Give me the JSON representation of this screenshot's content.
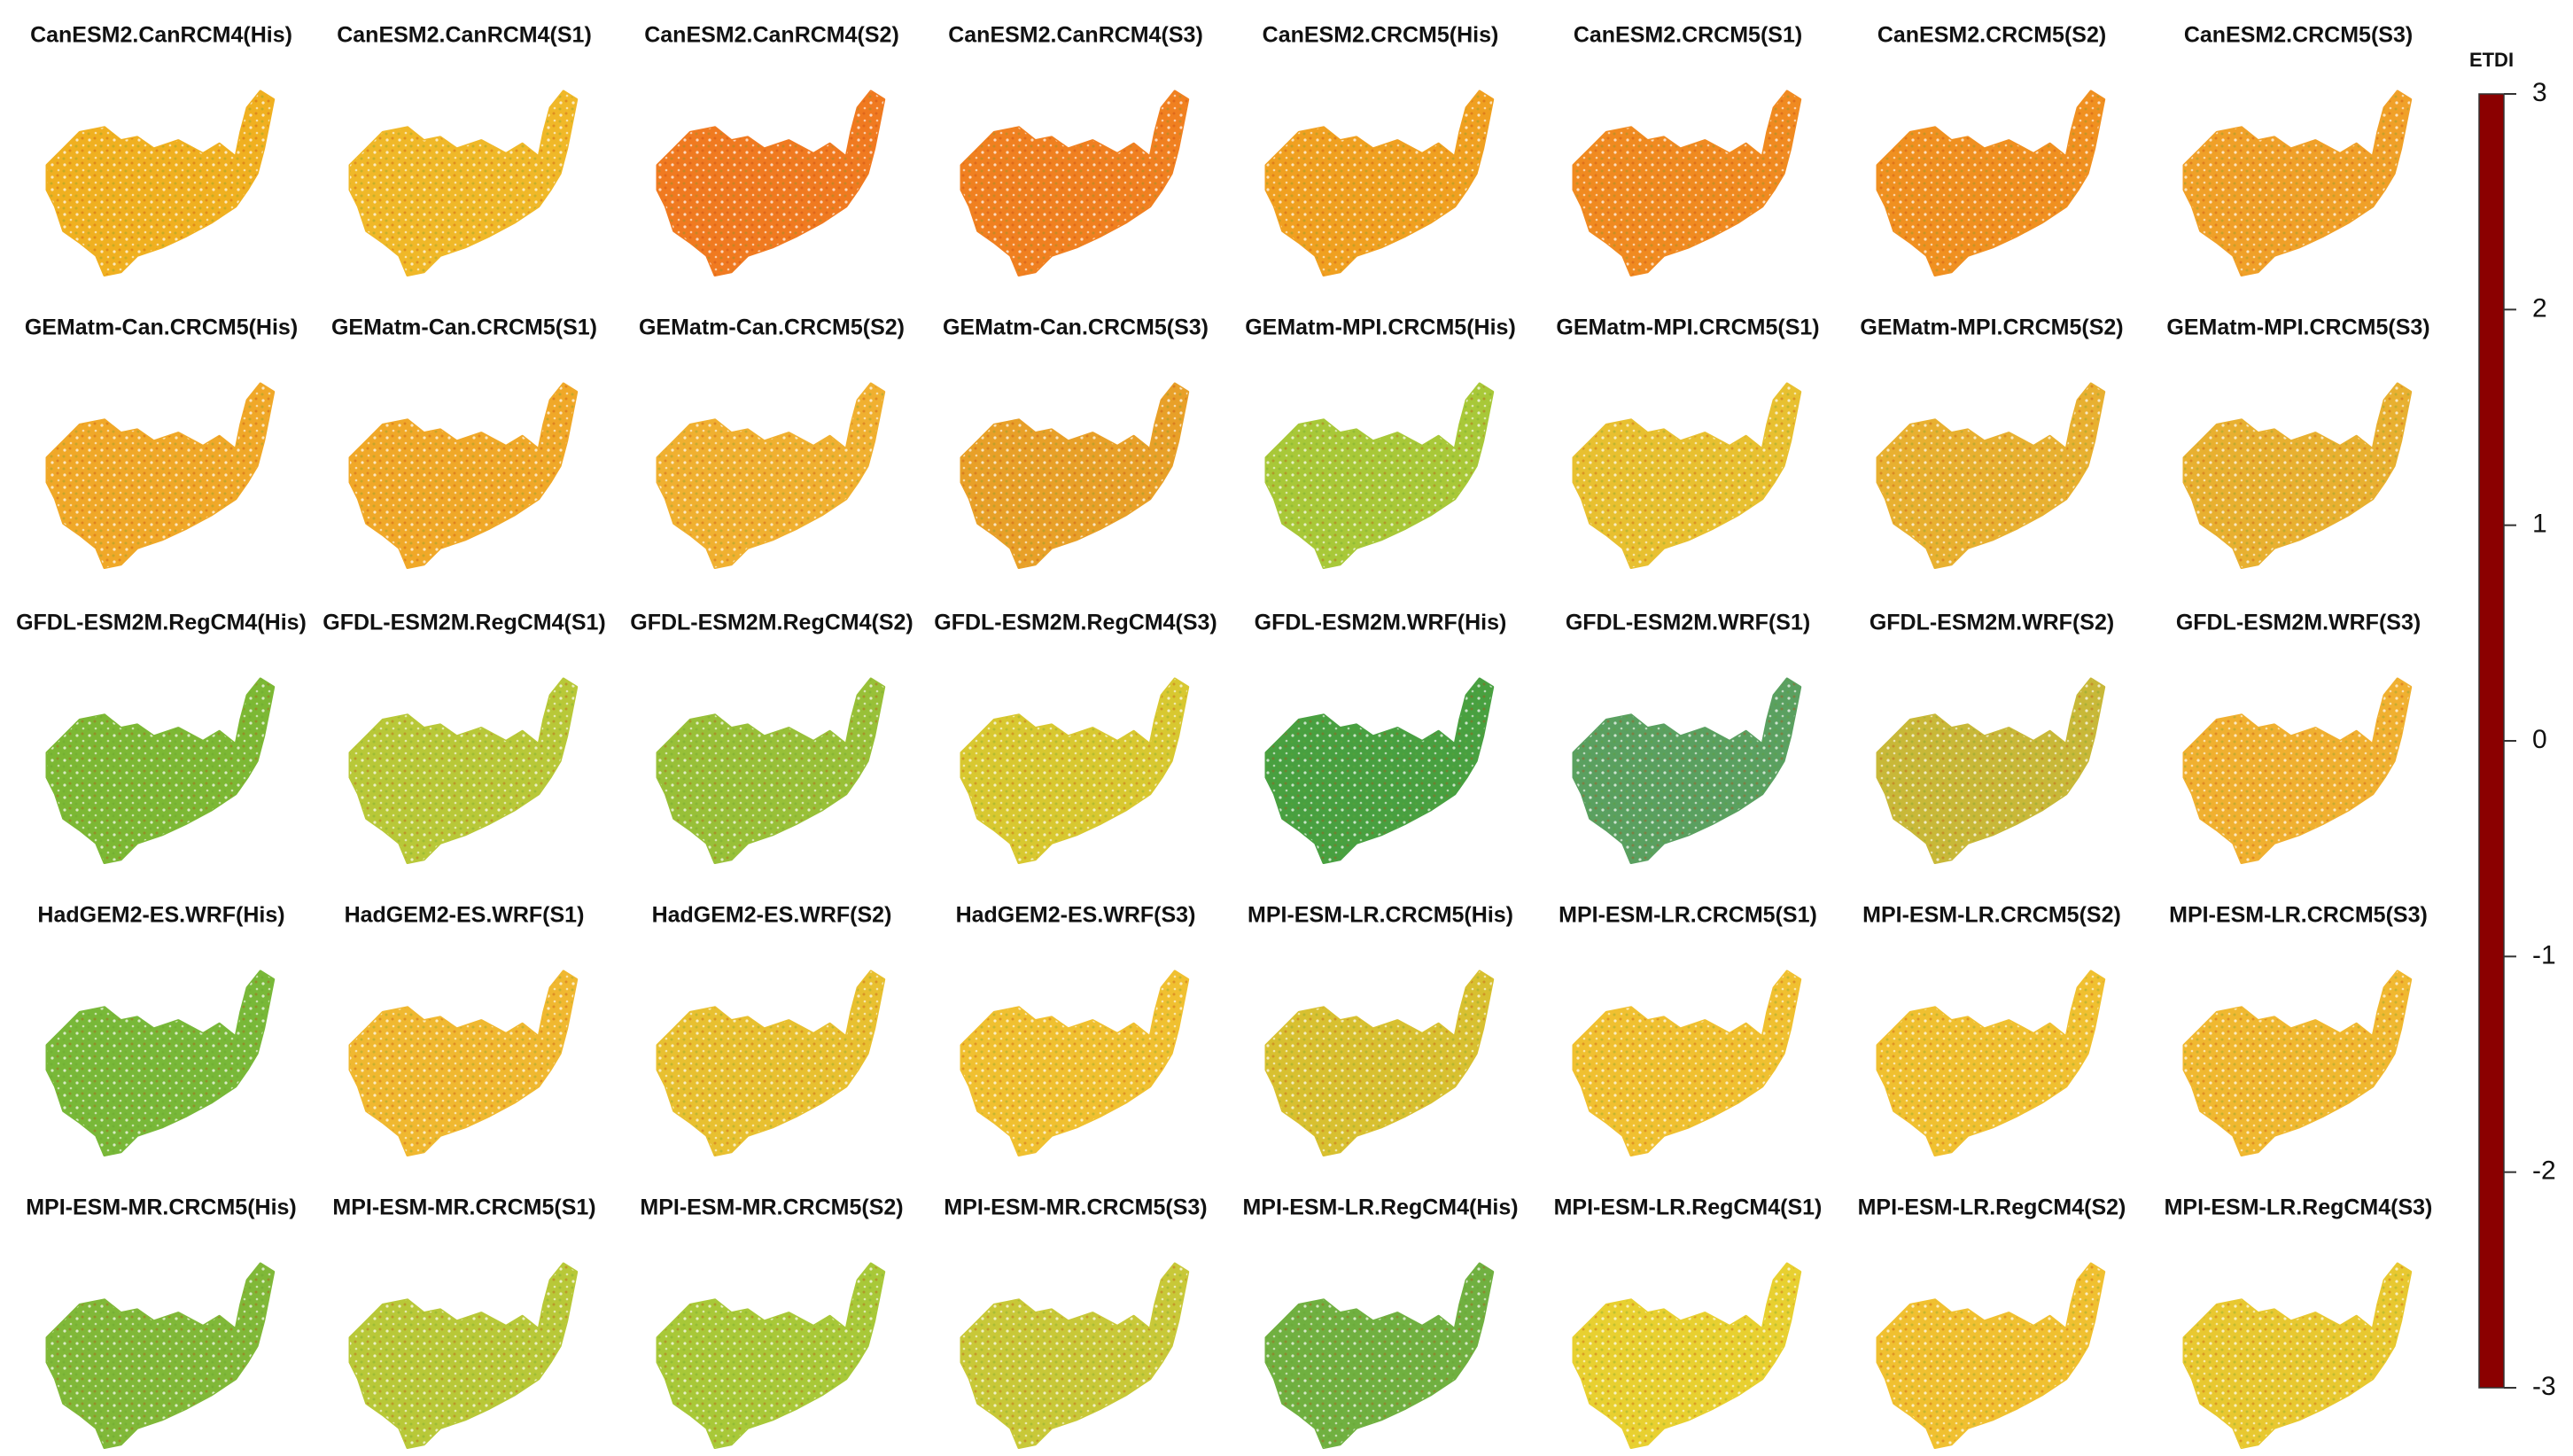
{
  "panels": [
    {
      "title": "CanESM2.CanRCM4(His)",
      "color": "#f0b020"
    },
    {
      "title": "CanESM2.CanRCM4(S1)",
      "color": "#f0b828"
    },
    {
      "title": "CanESM2.CanRCM4(S2)",
      "color": "#f07a20"
    },
    {
      "title": "CanESM2.CanRCM4(S3)",
      "color": "#f08020"
    },
    {
      "title": "CanESM2.CRCM5(His)",
      "color": "#f0a020"
    },
    {
      "title": "CanESM2.CRCM5(S1)",
      "color": "#f08a20"
    },
    {
      "title": "CanESM2.CRCM5(S2)",
      "color": "#f09020"
    },
    {
      "title": "CanESM2.CRCM5(S3)",
      "color": "#f0a028"
    },
    {
      "title": "GEMatm-Can.CRCM5(His)",
      "color": "#f0a828"
    },
    {
      "title": "GEMatm-Can.CRCM5(S1)",
      "color": "#f0a828"
    },
    {
      "title": "GEMatm-Can.CRCM5(S2)",
      "color": "#f0b030"
    },
    {
      "title": "GEMatm-Can.CRCM5(S3)",
      "color": "#e8a028"
    },
    {
      "title": "GEMatm-MPI.CRCM5(His)",
      "color": "#a8c838"
    },
    {
      "title": "GEMatm-MPI.CRCM5(S1)",
      "color": "#e8c030"
    },
    {
      "title": "GEMatm-MPI.CRCM5(S2)",
      "color": "#e8b030"
    },
    {
      "title": "GEMatm-MPI.CRCM5(S3)",
      "color": "#e8b030"
    },
    {
      "title": "GFDL-ESM2M.RegCM4(His)",
      "color": "#7cb834"
    },
    {
      "title": "GFDL-ESM2M.RegCM4(S1)",
      "color": "#b8c838"
    },
    {
      "title": "GFDL-ESM2M.RegCM4(S2)",
      "color": "#98c038"
    },
    {
      "title": "GFDL-ESM2M.RegCM4(S3)",
      "color": "#d8c830"
    },
    {
      "title": "GFDL-ESM2M.WRF(His)",
      "color": "#48a040"
    },
    {
      "title": "GFDL-ESM2M.WRF(S1)",
      "color": "#5aa060"
    },
    {
      "title": "GFDL-ESM2M.WRF(S2)",
      "color": "#c8b838"
    },
    {
      "title": "GFDL-ESM2M.WRF(S3)",
      "color": "#f0b030"
    },
    {
      "title": "HadGEM2-ES.WRF(His)",
      "color": "#78b838"
    },
    {
      "title": "HadGEM2-ES.WRF(S1)",
      "color": "#f0b830"
    },
    {
      "title": "HadGEM2-ES.WRF(S2)",
      "color": "#e8c030"
    },
    {
      "title": "HadGEM2-ES.WRF(S3)",
      "color": "#f0c030"
    },
    {
      "title": "MPI-ESM-LR.CRCM5(His)",
      "color": "#d8c030"
    },
    {
      "title": "MPI-ESM-LR.CRCM5(S1)",
      "color": "#f0c030"
    },
    {
      "title": "MPI-ESM-LR.CRCM5(S2)",
      "color": "#f0c030"
    },
    {
      "title": "MPI-ESM-LR.CRCM5(S3)",
      "color": "#f0b830"
    },
    {
      "title": "MPI-ESM-MR.CRCM5(His)",
      "color": "#80b838"
    },
    {
      "title": "MPI-ESM-MR.CRCM5(S1)",
      "color": "#b8c838"
    },
    {
      "title": "MPI-ESM-MR.CRCM5(S2)",
      "color": "#a8c838"
    },
    {
      "title": "MPI-ESM-MR.CRCM5(S3)",
      "color": "#c8c838"
    },
    {
      "title": "MPI-ESM-LR.RegCM4(His)",
      "color": "#70b040"
    },
    {
      "title": "MPI-ESM-LR.RegCM4(S1)",
      "color": "#e8d030"
    },
    {
      "title": "MPI-ESM-LR.RegCM4(S2)",
      "color": "#f0c030"
    },
    {
      "title": "MPI-ESM-LR.RegCM4(S3)",
      "color": "#e8c830"
    }
  ],
  "colorbar": {
    "title": "ETDI",
    "lim": [
      -3,
      3
    ],
    "ticks": [
      3,
      2,
      1,
      0,
      -1,
      -2,
      -3
    ],
    "stops": [
      [
        -3,
        "#8b0000"
      ],
      [
        -2,
        "#e81010"
      ],
      [
        -1.3,
        "#f07020"
      ],
      [
        -1,
        "#f0a020"
      ],
      [
        -0.6,
        "#f0e020"
      ],
      [
        -0.2,
        "#a0d030"
      ],
      [
        0,
        "#20a030"
      ],
      [
        0.6,
        "#909090"
      ],
      [
        1,
        "#d0a0d0"
      ],
      [
        1.5,
        "#40d0e0"
      ],
      [
        2,
        "#2080e0"
      ],
      [
        3,
        "#101080"
      ]
    ]
  }
}
